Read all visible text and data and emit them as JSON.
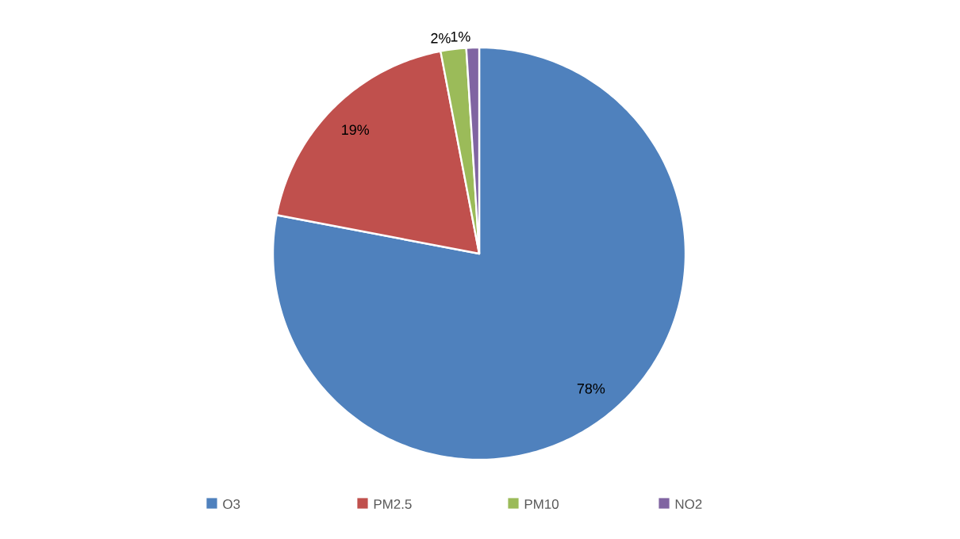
{
  "chart_data": {
    "type": "pie",
    "categories": [
      "O3",
      "PM2.5",
      "PM10",
      "NO2"
    ],
    "values": [
      78,
      19,
      2,
      1
    ],
    "colors": [
      "#4f81bd",
      "#c0504d",
      "#9bbb59",
      "#8064a2"
    ],
    "value_labels": [
      "78%",
      "19%",
      "2%",
      "1%"
    ],
    "legend": "bottom"
  }
}
